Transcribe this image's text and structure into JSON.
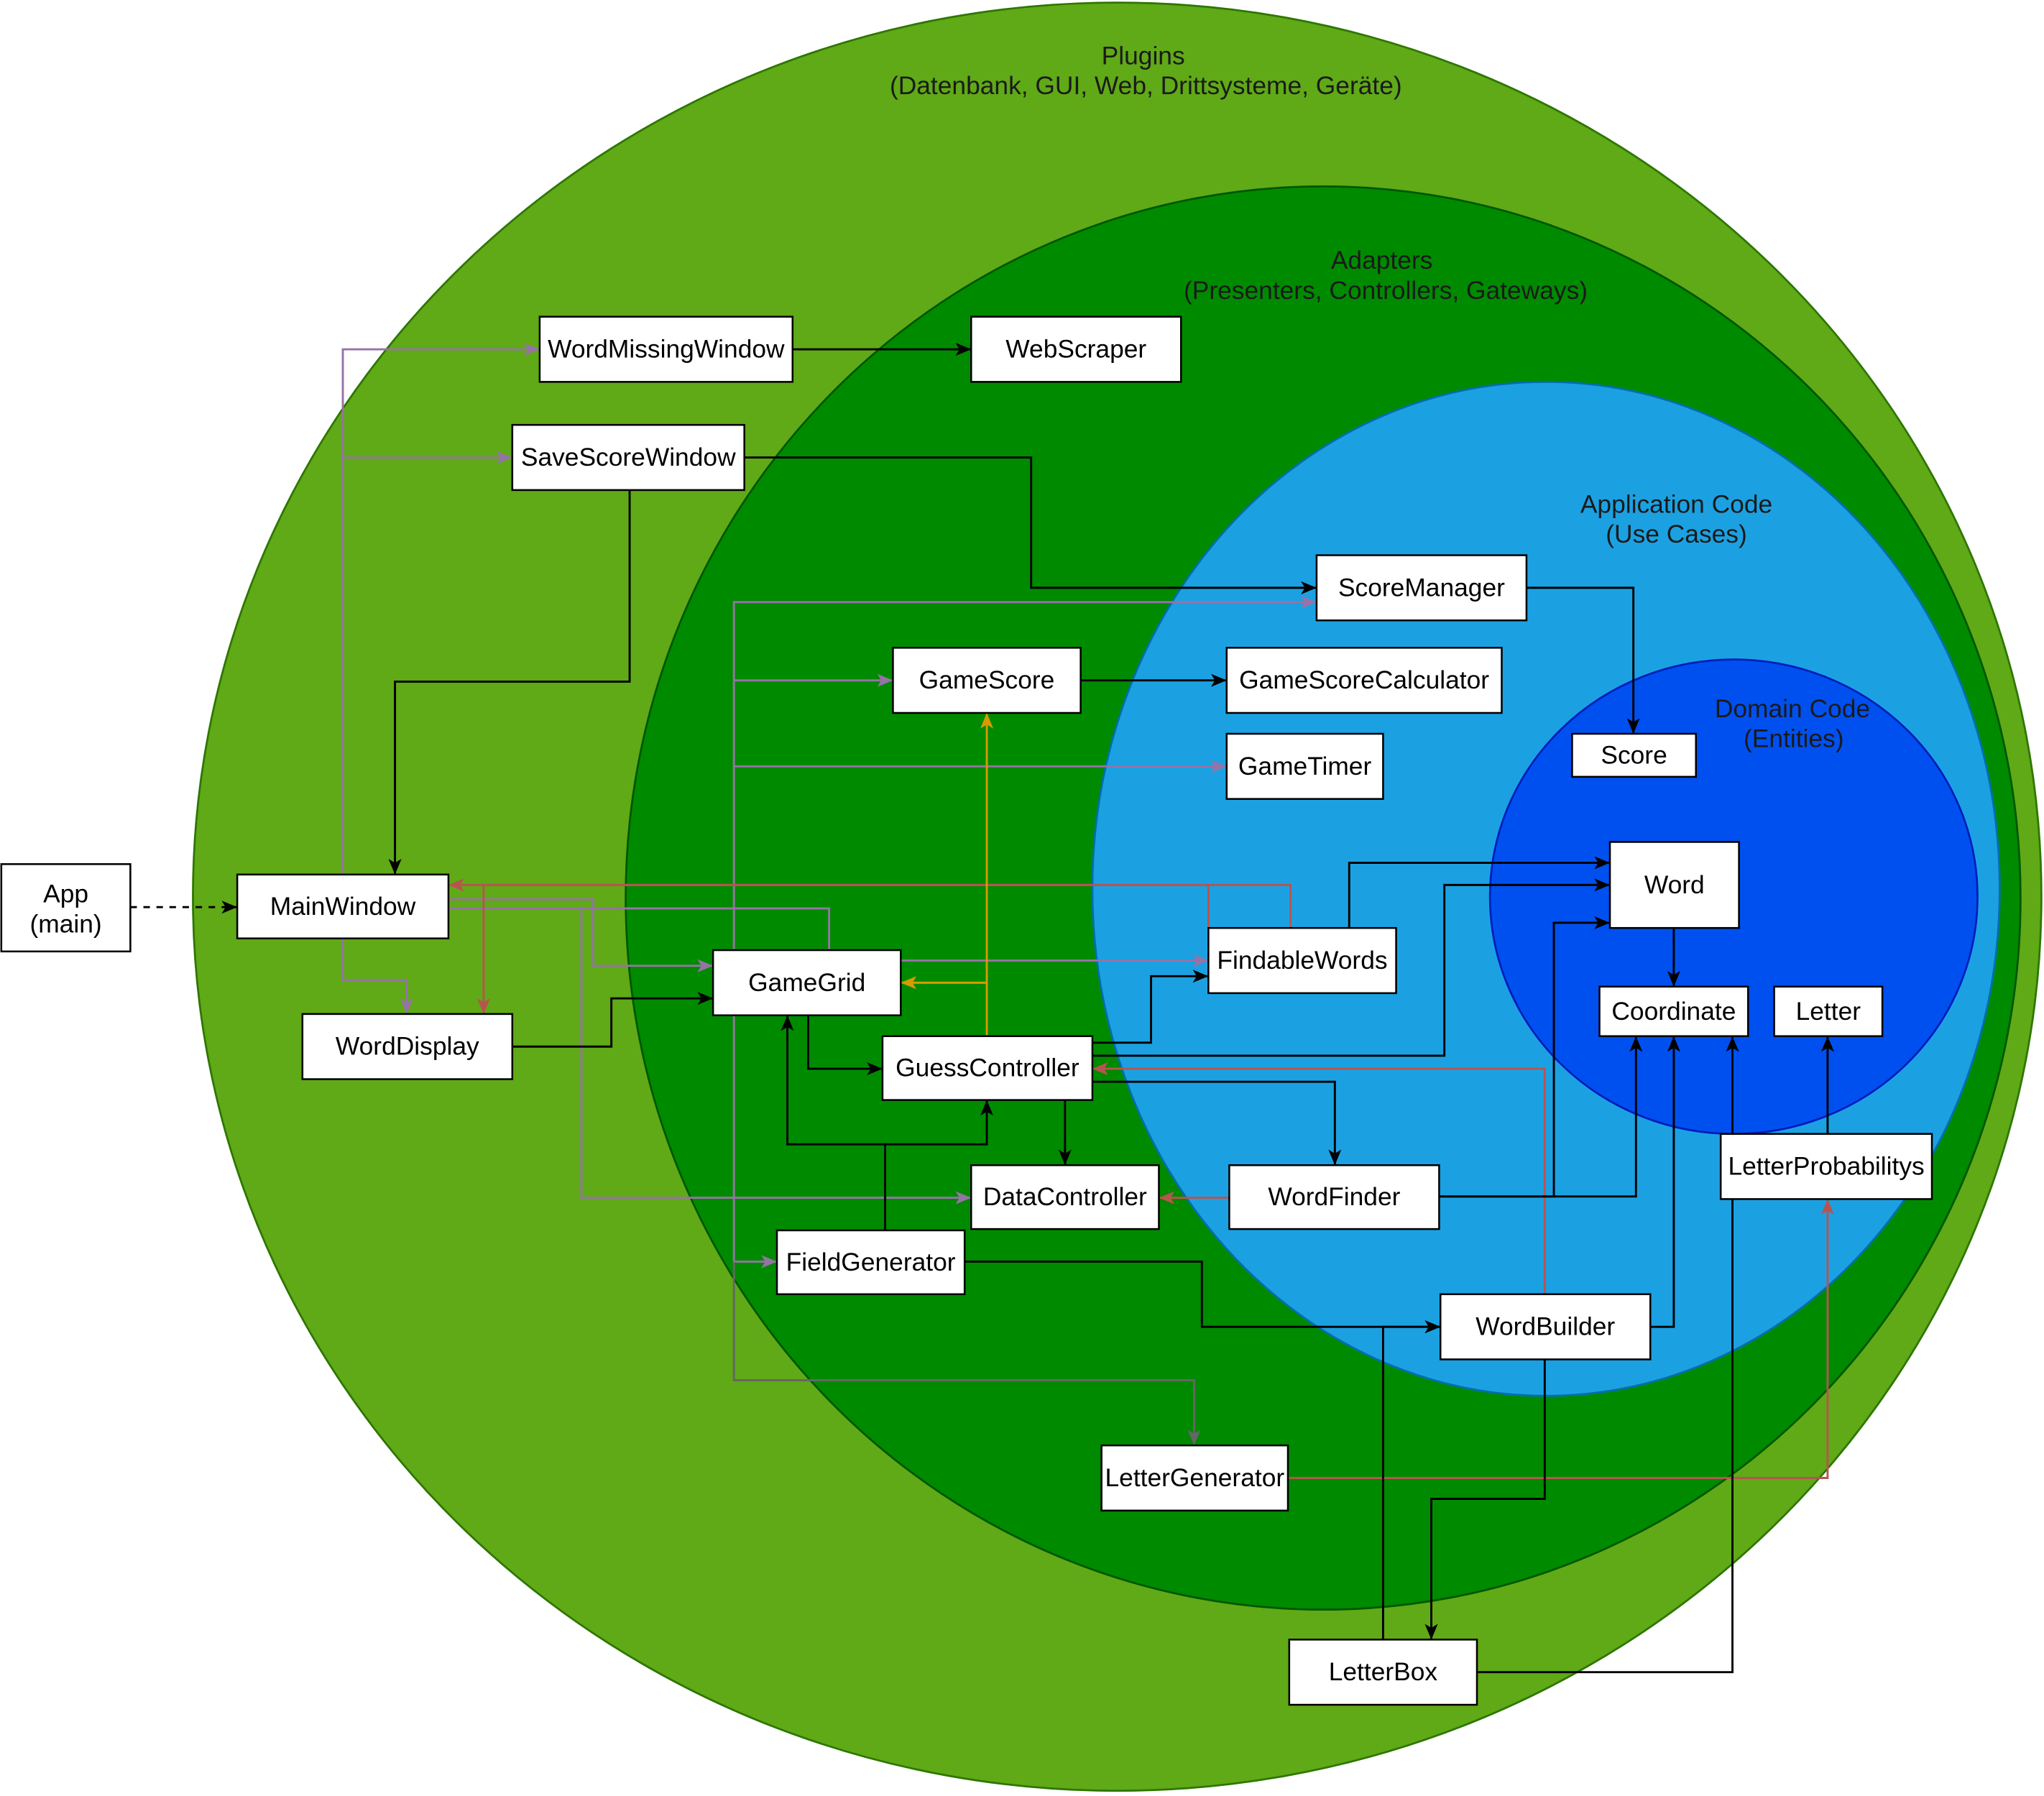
{
  "layers": {
    "plugins": {
      "title": "Plugins",
      "subtitle": "(Datenbank, GUI, Web, Drittsysteme, Geräte)"
    },
    "adapters": {
      "title": "Adapters",
      "subtitle": "(Presenters, Controllers, Gateways)"
    },
    "application": {
      "title": "Application Code",
      "subtitle": "(Use Cases)"
    },
    "domain": {
      "title": "Domain Code",
      "subtitle": "(Entities)"
    }
  },
  "nodes": {
    "app": {
      "line1": "App",
      "line2": "(main)"
    },
    "main_window": "MainWindow",
    "word_missing_window": "WordMissingWindow",
    "web_scraper": "WebScraper",
    "save_score_window": "SaveScoreWindow",
    "score_manager": "ScoreManager",
    "game_score": "GameScore",
    "game_score_calculator": "GameScoreCalculator",
    "game_timer": "GameTimer",
    "score": "Score",
    "word": "Word",
    "findable_words": "FindableWords",
    "game_grid": "GameGrid",
    "word_display": "WordDisplay",
    "guess_controller": "GuessController",
    "coordinate": "Coordinate",
    "letter": "Letter",
    "data_controller": "DataController",
    "word_finder": "WordFinder",
    "letter_probabilitys": "LetterProbabilitys",
    "field_generator": "FieldGenerator",
    "word_builder": "WordBuilder",
    "letter_generator": "LetterGenerator",
    "letter_box": "LetterBox"
  },
  "colors": {
    "plugins_fill": "#60A917",
    "plugins_stroke": "#2D7600",
    "adapters_fill": "#008A00",
    "adapters_stroke": "#005700",
    "application_fill": "#1BA1E2",
    "application_stroke": "#006EAF",
    "domain_fill": "#0050EF",
    "domain_stroke": "#001DBC",
    "layer_text": "#1A1A1A",
    "edge_black": "#000000",
    "edge_purple": "#9673A6",
    "edge_red": "#B85450",
    "edge_yellow": "#D79B00",
    "edge_gray": "#666666"
  }
}
